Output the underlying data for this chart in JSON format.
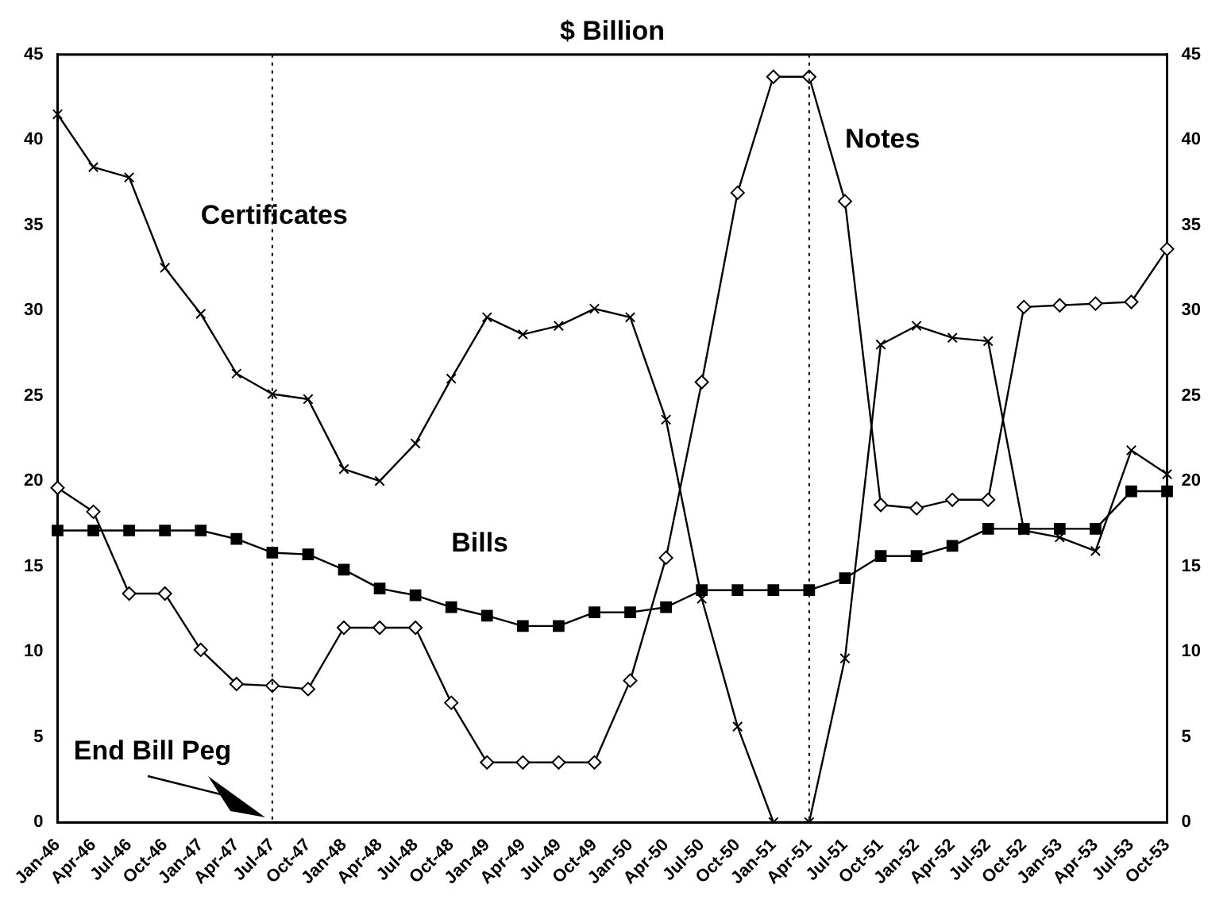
{
  "chart_data": {
    "type": "line",
    "title": "$ Billion",
    "categories": [
      "Jan-46",
      "Apr-46",
      "Jul-46",
      "Oct-46",
      "Jan-47",
      "Apr-47",
      "Jul-47",
      "Oct-47",
      "Jan-48",
      "Apr-48",
      "Jul-48",
      "Oct-48",
      "Jan-49",
      "Apr-49",
      "Jul-49",
      "Oct-49",
      "Jan-50",
      "Apr-50",
      "Jul-50",
      "Oct-50",
      "Jan-51",
      "Apr-51",
      "Jul-51",
      "Oct-51",
      "Jan-52",
      "Apr-52",
      "Jul-52",
      "Oct-52",
      "Jan-53",
      "Apr-53",
      "Jul-53",
      "Oct-53"
    ],
    "series": [
      {
        "name": "Certificates",
        "color": "#000000",
        "marker": "cross",
        "values": [
          41.5,
          38.4,
          37.8,
          32.5,
          29.8,
          26.3,
          25.1,
          24.8,
          20.7,
          20.0,
          22.2,
          26.0,
          29.6,
          28.6,
          29.1,
          30.1,
          29.6,
          23.6,
          13.1,
          5.6,
          0,
          0,
          9.6,
          28.0,
          29.1,
          28.4,
          28.2,
          17.1,
          16.7,
          15.9,
          21.8,
          20.4
        ]
      },
      {
        "name": "Notes",
        "color": "#000000",
        "marker": "diamond",
        "values": [
          19.6,
          18.2,
          13.4,
          13.4,
          10.1,
          8.1,
          8.0,
          7.8,
          11.4,
          11.4,
          11.4,
          7.0,
          3.5,
          3.5,
          3.5,
          3.5,
          8.3,
          15.5,
          25.8,
          36.9,
          43.7,
          43.7,
          36.4,
          18.6,
          18.4,
          18.9,
          18.9,
          30.2,
          30.3,
          30.4,
          30.5,
          33.6
        ]
      },
      {
        "name": "Bills",
        "color": "#000000",
        "marker": "square",
        "values": [
          17.1,
          17.1,
          17.1,
          17.1,
          17.1,
          16.6,
          15.8,
          15.7,
          14.8,
          13.7,
          13.3,
          12.6,
          12.1,
          11.5,
          11.5,
          12.3,
          12.3,
          12.6,
          13.6,
          13.6,
          13.6,
          13.6,
          14.3,
          15.6,
          15.6,
          16.2,
          17.2,
          17.2,
          17.2,
          17.2,
          19.4,
          19.4
        ]
      }
    ],
    "ylim": [
      0,
      45
    ],
    "yticks": [
      0,
      5,
      10,
      15,
      20,
      25,
      30,
      35,
      40,
      45
    ],
    "y2lim": [
      0,
      45
    ],
    "y2ticks": [
      0,
      5,
      10,
      15,
      20,
      25,
      30,
      35,
      40,
      45
    ],
    "ref_lines": [
      {
        "axis": "x",
        "value": "Jul-47",
        "line_style": "dotted",
        "color": "#000000"
      },
      {
        "axis": "x",
        "value": "Apr-51",
        "line_style": "dotted",
        "color": "#000000"
      }
    ],
    "annotations": [
      {
        "text": "End Bill Peg",
        "x": "Jul-47",
        "y": 0
      }
    ],
    "grid": false,
    "legend": false,
    "line_style": "solid"
  }
}
